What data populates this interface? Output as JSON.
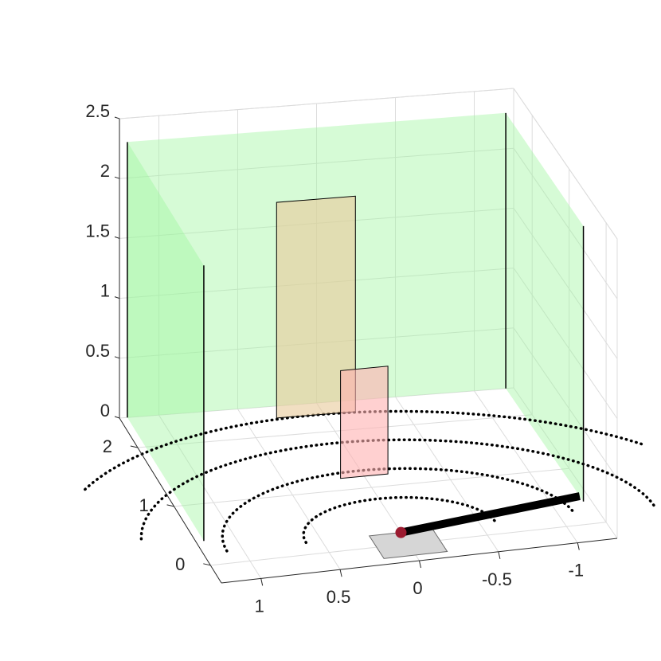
{
  "chart_data": {
    "type": "3d-scene",
    "title": "",
    "xlabel": "",
    "ylabel": "",
    "zlabel": "",
    "grid": true,
    "x_ticks": [
      {
        "value": 1,
        "label": "1"
      },
      {
        "value": 0.5,
        "label": "0.5"
      },
      {
        "value": 0,
        "label": "0"
      },
      {
        "value": -0.5,
        "label": "-0.5"
      },
      {
        "value": -1,
        "label": "-1"
      }
    ],
    "y_ticks": [
      {
        "value": 0,
        "label": "0"
      },
      {
        "value": 1,
        "label": "1"
      },
      {
        "value": 2,
        "label": "2"
      }
    ],
    "z_ticks": [
      {
        "value": 0,
        "label": "0"
      },
      {
        "value": 0.5,
        "label": "0.5"
      },
      {
        "value": 1,
        "label": "1"
      },
      {
        "value": 1.5,
        "label": "1.5"
      },
      {
        "value": 2,
        "label": "2"
      },
      {
        "value": 2.5,
        "label": "2.5"
      }
    ],
    "xlim": [
      -1.25,
      1.25
    ],
    "ylim": [
      -0.3,
      2.5
    ],
    "zlim": [
      0,
      2.5
    ],
    "green_walls": {
      "color": "#9ef59e",
      "left_x": 1.2,
      "right_x": -1.2,
      "back_y": 2.5,
      "y_range": [
        0.4,
        2.5
      ],
      "height": 2.3
    },
    "rectangles": [
      {
        "name": "tan-panel",
        "x_range": [
          -0.2,
          0.3
        ],
        "y": 2.3,
        "z_range": [
          0,
          1.8
        ],
        "color": "#e8ca9a"
      },
      {
        "name": "pink-panel",
        "x_range": [
          -0.15,
          0.15
        ],
        "y": 1.2,
        "z_range": [
          0,
          0.9
        ],
        "color": "#ffb1b1"
      }
    ],
    "gray_square": {
      "x_range": [
        -0.2,
        0.2
      ],
      "y_range": [
        -0.2,
        0.2
      ],
      "color": "#d6d6d6"
    },
    "arcs": [
      {
        "radius": 0.6,
        "start_deg": 0,
        "end_deg": 180
      },
      {
        "radius": 1.1,
        "start_deg": 0,
        "end_deg": 180
      },
      {
        "radius": 1.6,
        "start_deg": 12,
        "end_deg": 180
      },
      {
        "radius": 2.1,
        "start_deg": 35,
        "end_deg": 150
      }
    ],
    "arc_center": [
      0,
      0.2
    ],
    "bar": {
      "from": [
        0,
        0.2
      ],
      "to": [
        -1.2,
        0.5
      ],
      "color": "#000000"
    },
    "point": {
      "x": 0,
      "y": 0.2,
      "color": "#9b1b30"
    }
  }
}
